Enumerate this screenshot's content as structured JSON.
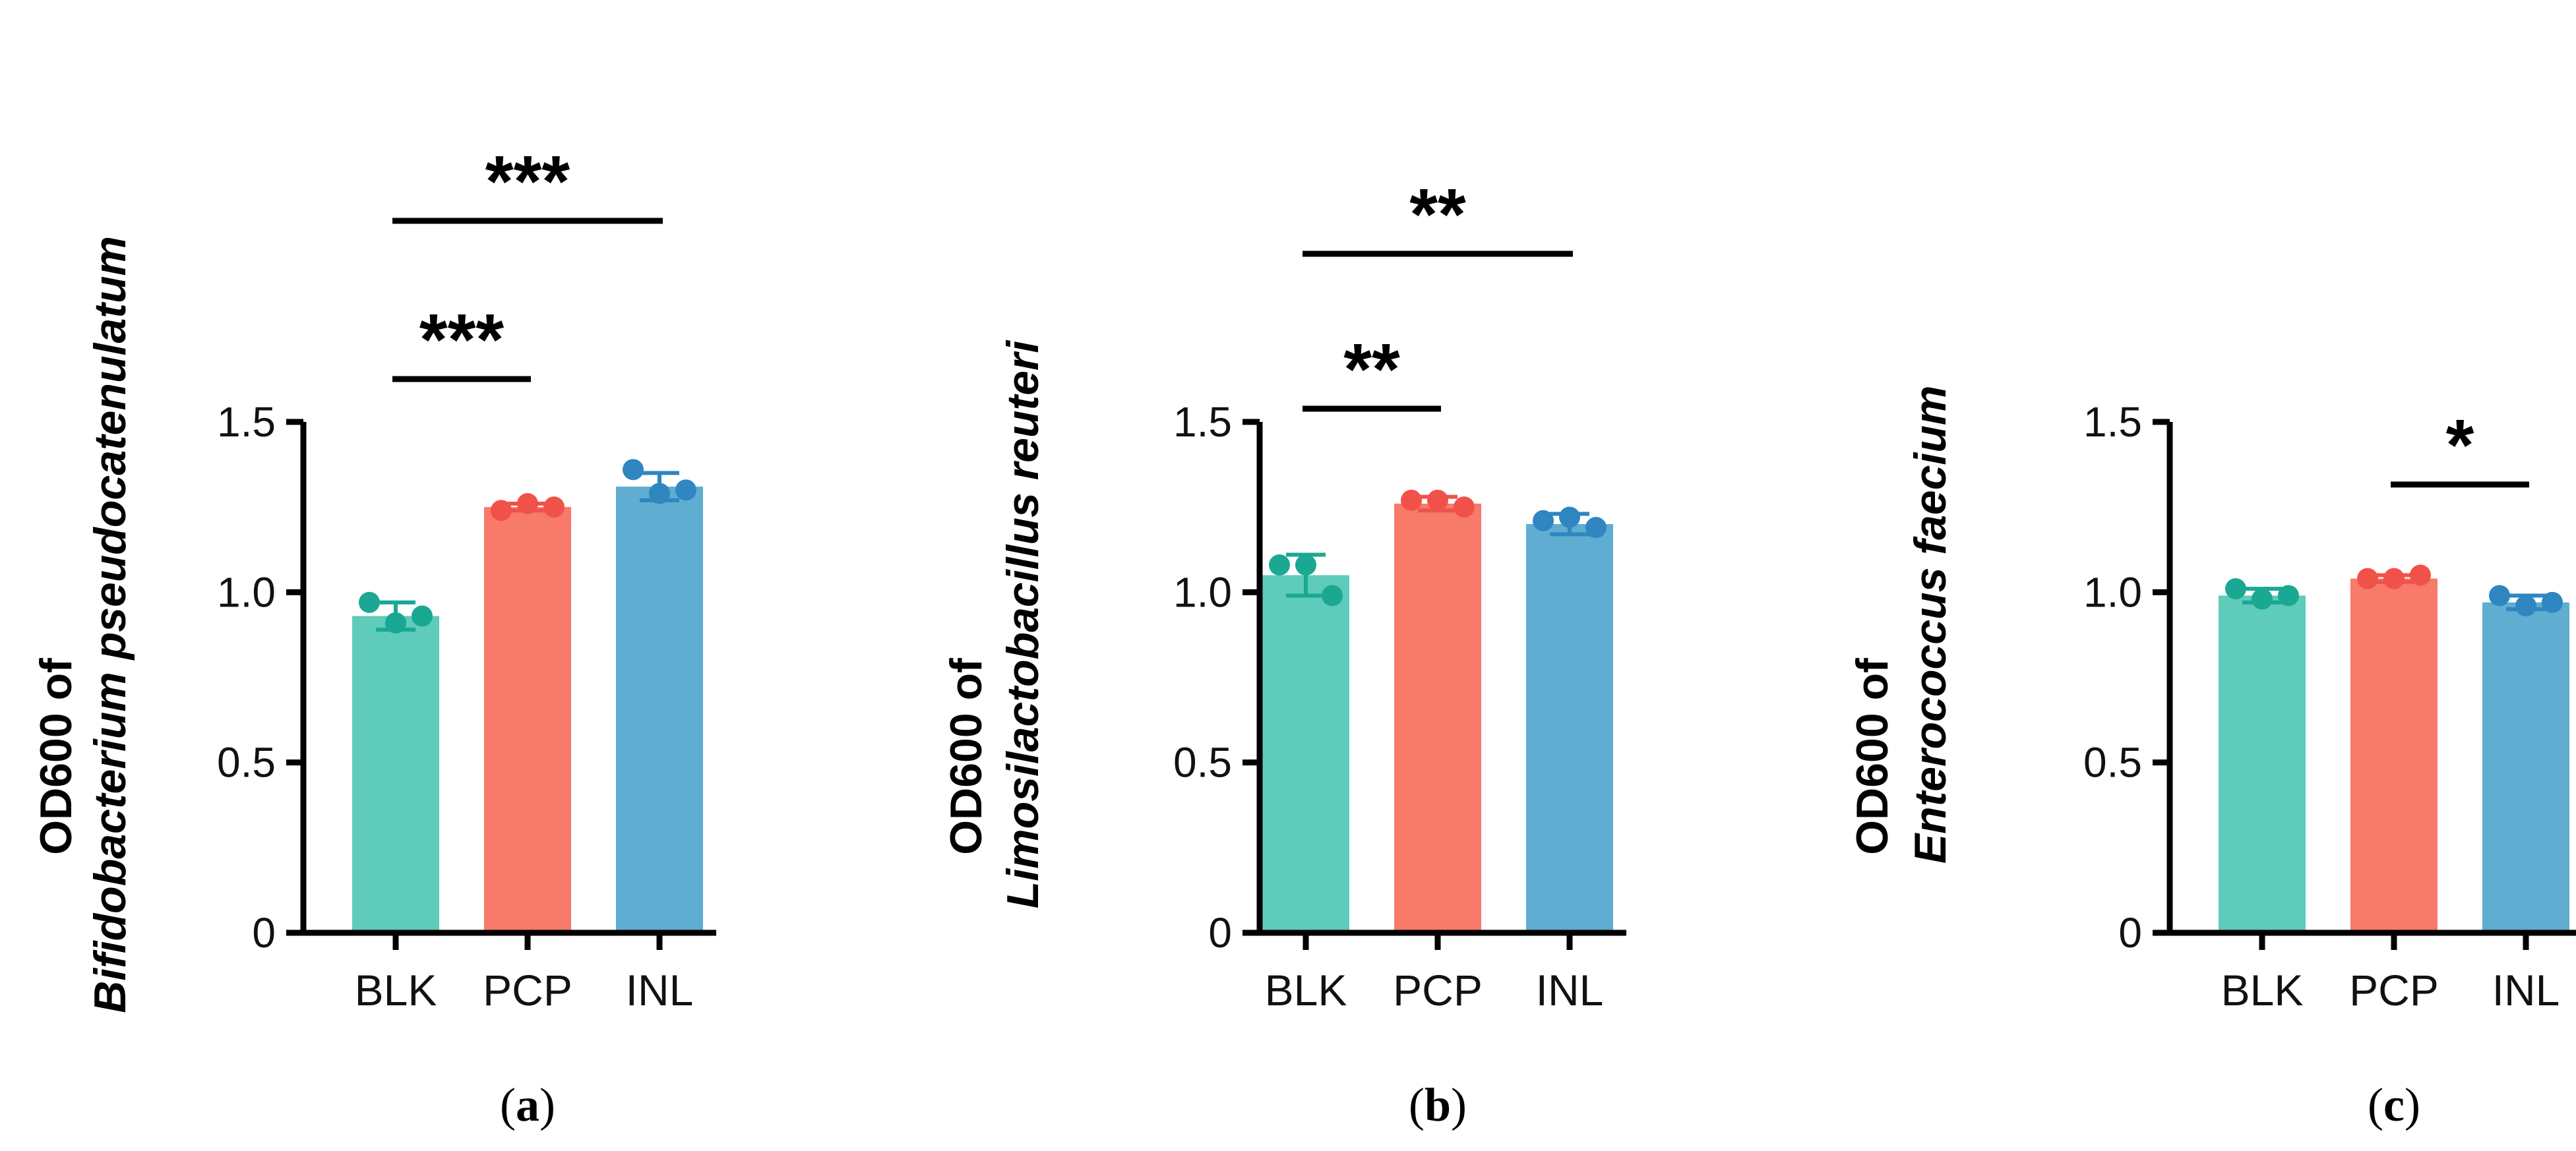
{
  "chart_data": [
    {
      "type": "bar",
      "panel": "a",
      "panel_label_open": "(",
      "panel_label_letter": "a",
      "panel_label_close": ")",
      "ylabel_line1": "OD600 of",
      "ylabel_line2": "Bifidobacterium pseudocatenulatum",
      "categories": [
        "BLK",
        "PCP",
        "INL"
      ],
      "values": [
        0.93,
        1.25,
        1.31
      ],
      "errors": [
        0.04,
        0.01,
        0.04
      ],
      "points": [
        [
          0.97,
          0.91,
          0.93
        ],
        [
          1.24,
          1.26,
          1.25
        ],
        [
          1.36,
          1.29,
          1.3
        ]
      ],
      "colors": [
        "#5ecbbb",
        "#f77a6a",
        "#5fadd0"
      ],
      "point_colors": [
        "#1aa892",
        "#f0524a",
        "#2f86c0"
      ],
      "ylim": [
        0,
        1.5
      ],
      "yticks": [
        "0",
        "0.5",
        "1.0",
        "1.5"
      ],
      "significance": [
        {
          "from": 0,
          "to": 1,
          "label": "***",
          "level": 1
        },
        {
          "from": 0,
          "to": 2,
          "label": "***",
          "level": 2
        }
      ]
    },
    {
      "type": "bar",
      "panel": "b",
      "panel_label_open": "(",
      "panel_label_letter": "b",
      "panel_label_close": ")",
      "ylabel_line1": "OD600 of",
      "ylabel_line2": "Limosilactobacillus reuteri",
      "categories": [
        "BLK",
        "PCP",
        "INL"
      ],
      "values": [
        1.05,
        1.26,
        1.2
      ],
      "errors": [
        0.06,
        0.02,
        0.03
      ],
      "points": [
        [
          1.08,
          1.08,
          0.99
        ],
        [
          1.27,
          1.27,
          1.25
        ],
        [
          1.21,
          1.22,
          1.19
        ]
      ],
      "colors": [
        "#5ecbbb",
        "#f77a6a",
        "#5fadd0"
      ],
      "point_colors": [
        "#1aa892",
        "#f0524a",
        "#2f86c0"
      ],
      "ylim": [
        0,
        1.5
      ],
      "yticks": [
        "0",
        "0.5",
        "1.0",
        "1.5"
      ],
      "significance": [
        {
          "from": 0,
          "to": 1,
          "label": "**",
          "level": 1
        },
        {
          "from": 0,
          "to": 2,
          "label": "**",
          "level": 2
        }
      ]
    },
    {
      "type": "bar",
      "panel": "c",
      "panel_label_open": "(",
      "panel_label_letter": "c",
      "panel_label_close": ")",
      "ylabel_line1": "OD600 of",
      "ylabel_line2": "Enterococcus faecium",
      "categories": [
        "BLK",
        "PCP",
        "INL"
      ],
      "values": [
        0.99,
        1.04,
        0.97
      ],
      "errors": [
        0.02,
        0.01,
        0.02
      ],
      "points": [
        [
          1.01,
          0.98,
          0.99
        ],
        [
          1.04,
          1.04,
          1.05
        ],
        [
          0.99,
          0.96,
          0.97
        ]
      ],
      "colors": [
        "#5ecbbb",
        "#f77a6a",
        "#5fadd0"
      ],
      "point_colors": [
        "#1aa892",
        "#f0524a",
        "#2f86c0"
      ],
      "ylim": [
        0,
        1.5
      ],
      "yticks": [
        "0",
        "0.5",
        "1.0",
        "1.5"
      ],
      "significance": [
        {
          "from": 1,
          "to": 2,
          "label": "*",
          "level": 1
        }
      ]
    }
  ]
}
